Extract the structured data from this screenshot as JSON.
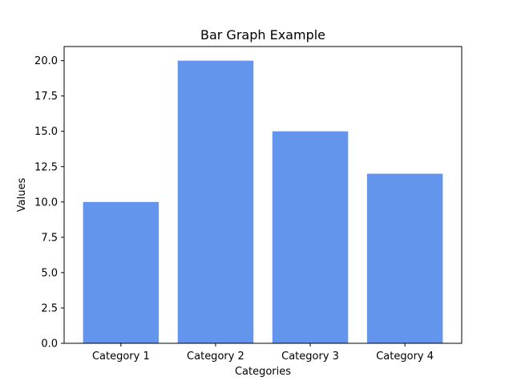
{
  "chart_data": {
    "type": "bar",
    "title": "Bar Graph Example",
    "xlabel": "Categories",
    "ylabel": "Values",
    "categories": [
      "Category 1",
      "Category 2",
      "Category 3",
      "Category 4"
    ],
    "values": [
      10,
      20,
      15,
      12
    ],
    "ylim": [
      0,
      21
    ],
    "yticks": [
      "0.0",
      "2.5",
      "5.0",
      "7.5",
      "10.0",
      "12.5",
      "15.0",
      "17.5",
      "20.0"
    ],
    "grid": false,
    "legend": "none",
    "bar_color": "#6495ED"
  }
}
